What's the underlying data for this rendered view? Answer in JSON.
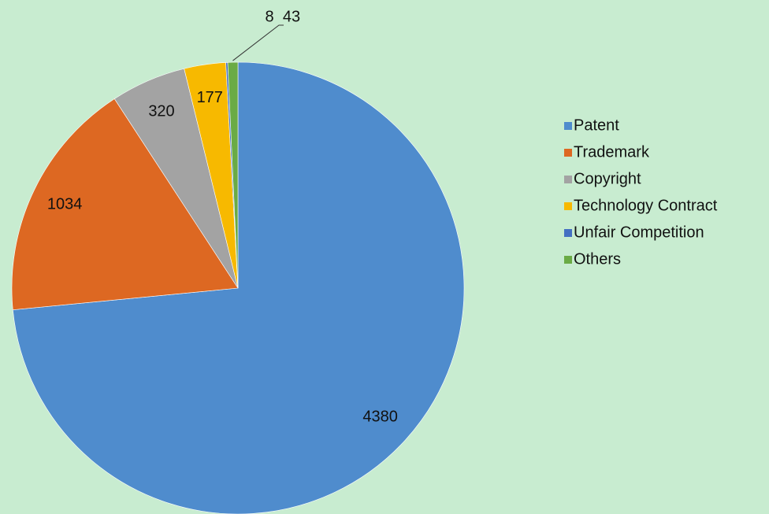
{
  "chart_data": {
    "type": "pie",
    "categories": [
      "Patent",
      "Trademark",
      "Copyright",
      "Technology Contract",
      "Unfair Competition",
      "Others"
    ],
    "values": [
      4380,
      1034,
      320,
      177,
      8,
      43
    ],
    "colors": [
      "#4f8ccd",
      "#dd6822",
      "#a3a3a3",
      "#f7b900",
      "#4470c2",
      "#6aab45"
    ],
    "legend": "right"
  }
}
